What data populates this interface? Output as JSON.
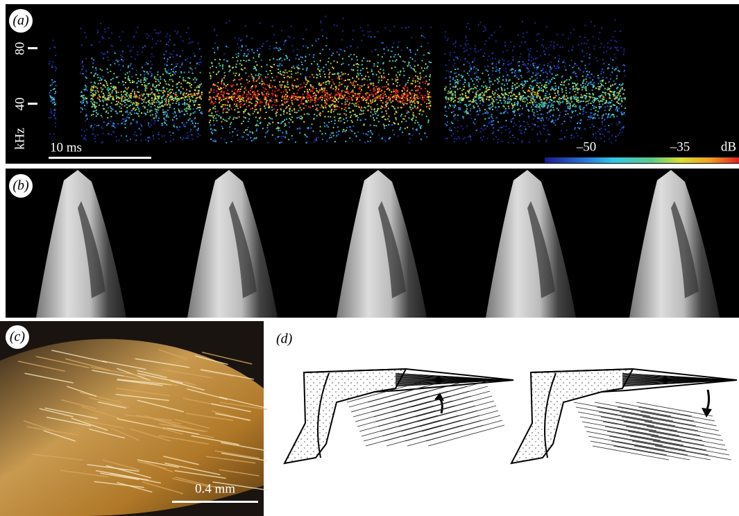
{
  "panels": [
    {
      "label": "(a)",
      "y_axis": {
        "label": "kHz",
        "ticks": [
          80,
          40
        ]
      },
      "scale_bar": "10 ms",
      "colorbar": {
        "labels": [
          "–50",
          "–35"
        ],
        "unit": "dB"
      }
    },
    {
      "label": "(b)"
    },
    {
      "label": "(c)",
      "scale_bar": "0.4 mm"
    },
    {
      "label": "(d)"
    }
  ]
}
